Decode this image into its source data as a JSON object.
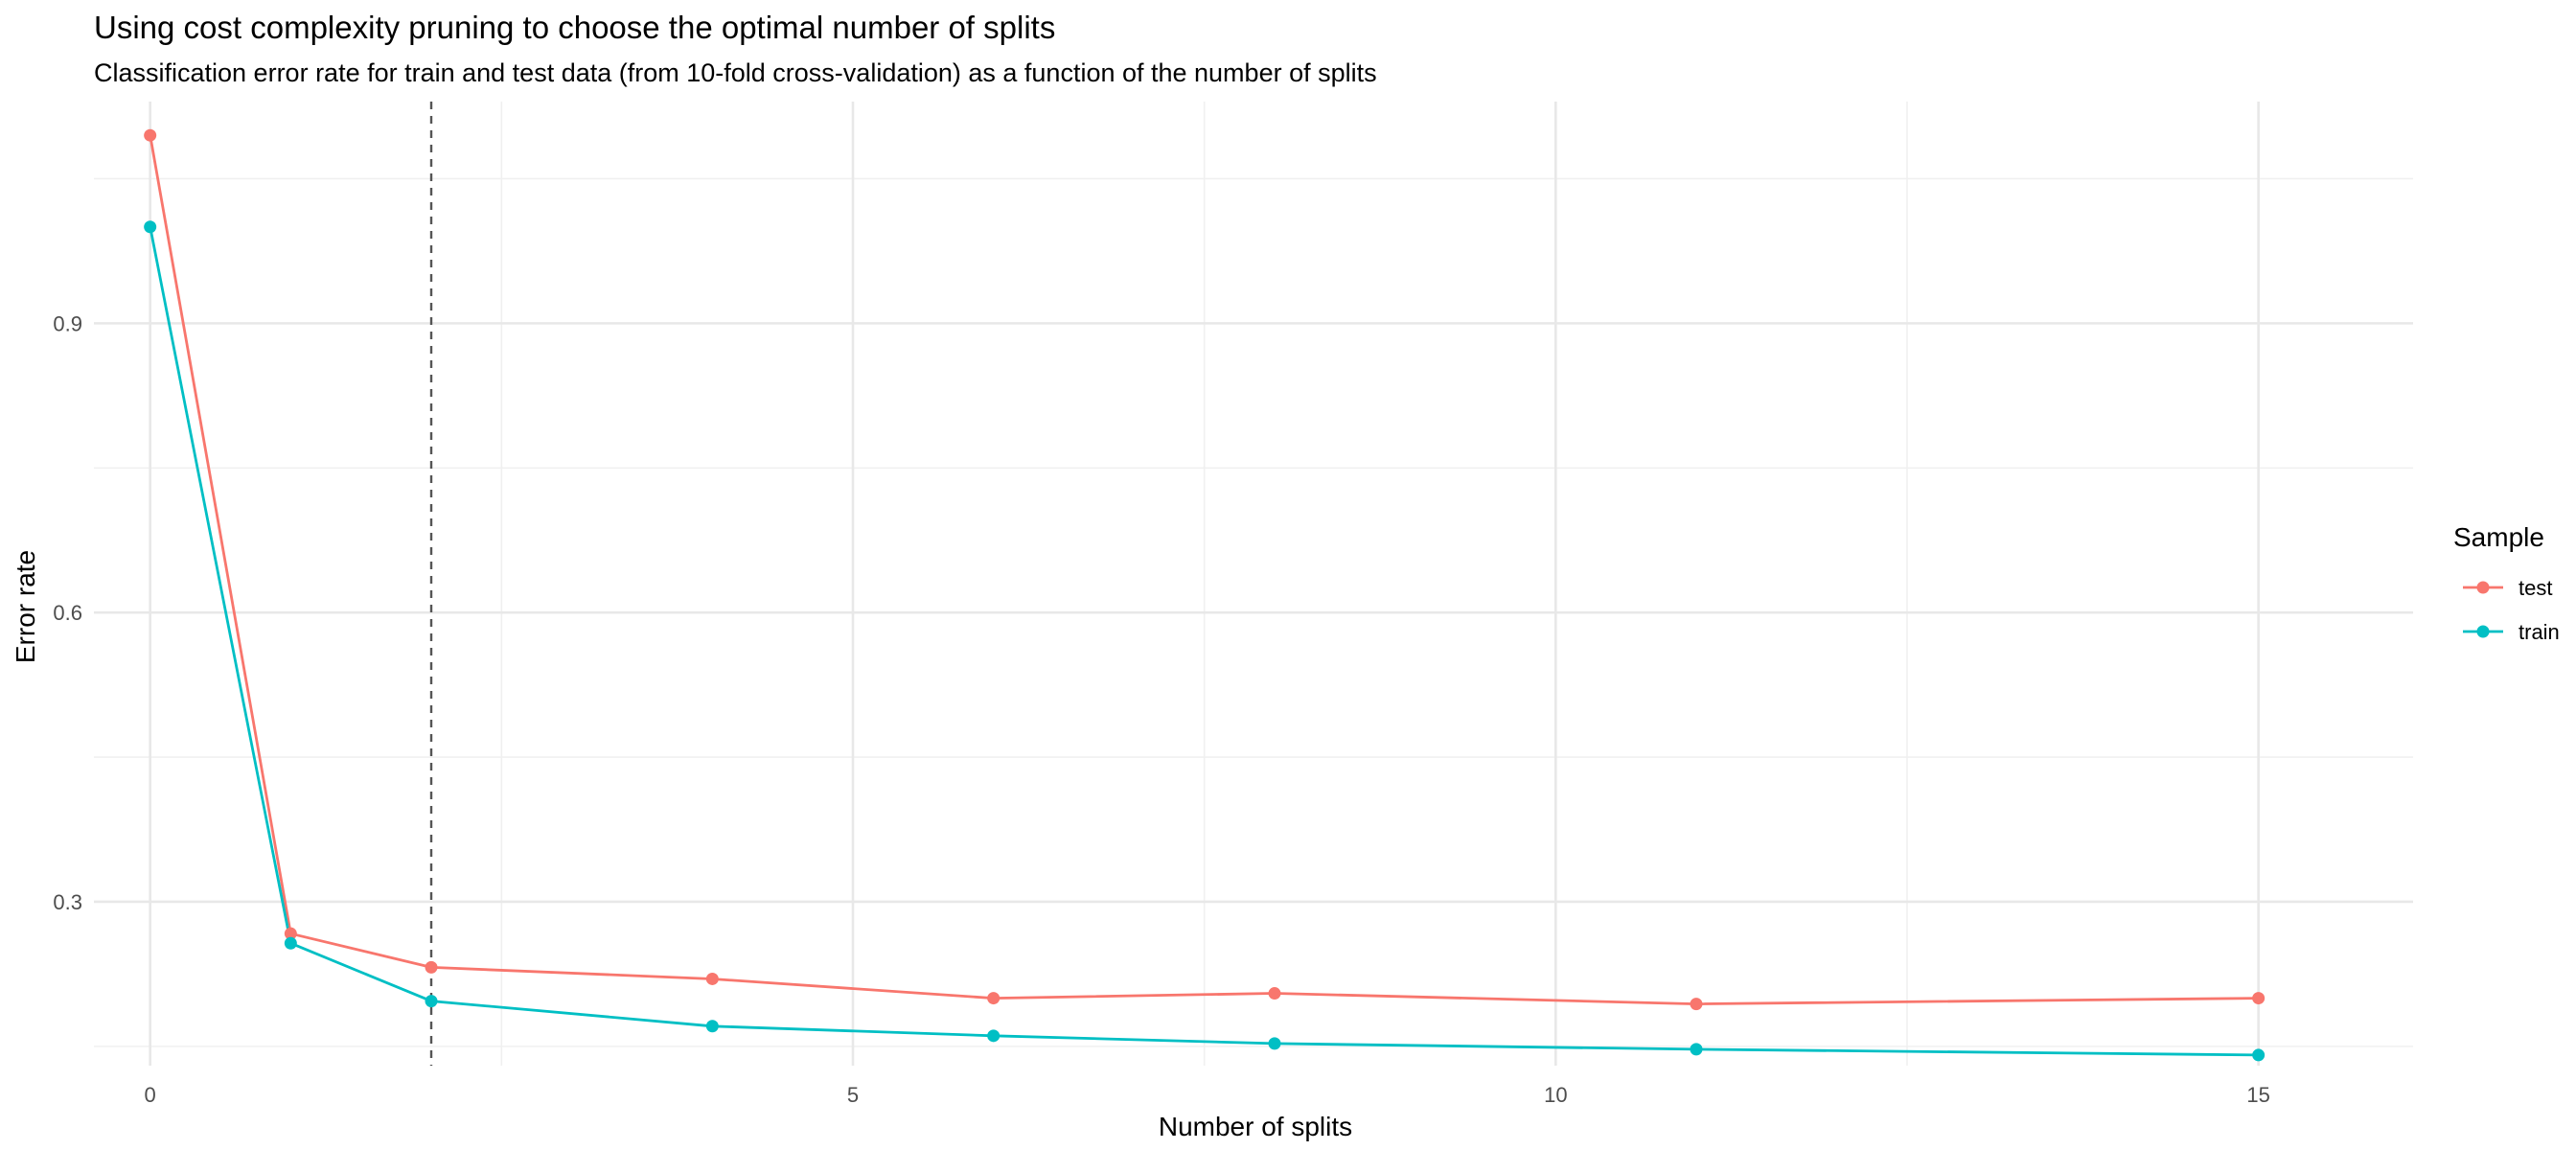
{
  "chart_data": {
    "type": "line",
    "title": "Using cost complexity pruning to choose the optimal number of splits",
    "subtitle": "Classification error rate for train and test data (from 10-fold cross-validation) as a function of the number of splits",
    "xlabel": "Number of splits",
    "ylabel": "Error rate",
    "xlim": [
      -0.4,
      16.1
    ],
    "ylim": [
      0.13,
      1.13
    ],
    "x_ticks": [
      0,
      5,
      10,
      15
    ],
    "y_ticks": [
      0.3,
      0.6,
      0.9
    ],
    "x_tick_labels": [
      "0",
      "5",
      "10",
      "15"
    ],
    "y_tick_labels": [
      "0.3",
      "0.6",
      "0.9"
    ],
    "x_minor_ticks": [
      2.5,
      7.5,
      12.5
    ],
    "y_minor_ticks": [
      0.15,
      0.45,
      0.75,
      1.05
    ],
    "grid": true,
    "vline": 2,
    "legend": {
      "title": "Sample",
      "placement": "right"
    },
    "series": [
      {
        "name": "test",
        "color": "#F8766D",
        "x": [
          0,
          1,
          2,
          4,
          6,
          8,
          11,
          15
        ],
        "y": [
          1.095,
          0.267,
          0.232,
          0.22,
          0.2,
          0.205,
          0.194,
          0.2
        ]
      },
      {
        "name": "train",
        "color": "#00BFC4",
        "x": [
          0,
          1,
          2,
          4,
          6,
          8,
          11,
          15
        ],
        "y": [
          1.0,
          0.257,
          0.197,
          0.171,
          0.161,
          0.153,
          0.147,
          0.141
        ]
      }
    ]
  }
}
